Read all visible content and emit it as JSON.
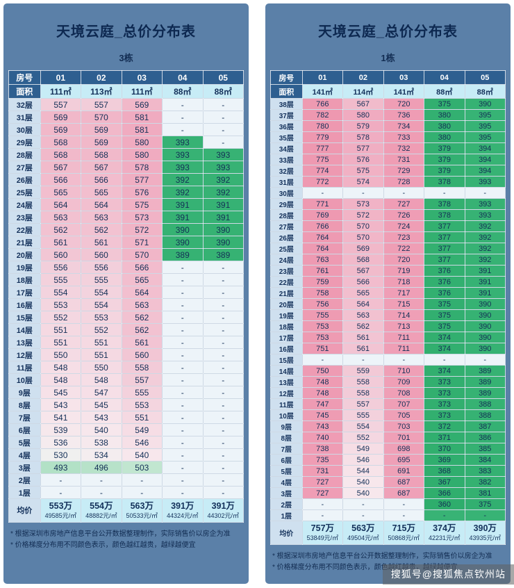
{
  "page": {
    "watermark": "搜狐号@搜狐焦点钦州站"
  },
  "colors": {
    "page_bg": "#ffffff",
    "panel_bg": "#5b80a8",
    "header_bg": "#2e5f90",
    "header_text": "#ffffff",
    "area_bg": "#c7ecf6",
    "floor_bg": "#cfe0ef",
    "avg_bg": "#c7ecf6",
    "text": "#132f56",
    "dash_bg": "#edf4f9",
    "green_dash_bg": "#38b375",
    "gradient_stops": [
      [
        360,
        "#2ead6c"
      ],
      [
        397,
        "#38b375"
      ],
      [
        468,
        "#90d4ab"
      ],
      [
        500,
        "#bce4cd"
      ],
      [
        520,
        "#ddeee4"
      ],
      [
        531,
        "#f2f0f0"
      ],
      [
        540,
        "#f7e7ec"
      ],
      [
        549,
        "#f6dde5"
      ],
      [
        556,
        "#f2cfdb"
      ],
      [
        562,
        "#f2c2d1"
      ],
      [
        570,
        "#f1b6c8"
      ],
      [
        580,
        "#f0abc0"
      ],
      [
        620,
        "#f0a5bb"
      ],
      [
        700,
        "#efa0b7"
      ],
      [
        782,
        "#ee98b0"
      ]
    ]
  },
  "chart_data": [
    {
      "type": "heatmap-table",
      "title": "天境云庭_总价分布表",
      "building": "3栋",
      "row_header": "房号",
      "area_header": "面积",
      "avg_header": "均价",
      "columns": [
        "01",
        "02",
        "03",
        "04",
        "05"
      ],
      "areas": [
        "111㎡",
        "113㎡",
        "111㎡",
        "88㎡",
        "88㎡"
      ],
      "rows": [
        {
          "floor": "32层",
          "values": [
            557,
            557,
            569,
            null,
            null
          ]
        },
        {
          "floor": "31层",
          "values": [
            569,
            570,
            581,
            null,
            null
          ]
        },
        {
          "floor": "30层",
          "values": [
            569,
            569,
            581,
            null,
            null
          ]
        },
        {
          "floor": "29层",
          "values": [
            568,
            569,
            580,
            393,
            null
          ]
        },
        {
          "floor": "28层",
          "values": [
            568,
            568,
            580,
            393,
            393
          ]
        },
        {
          "floor": "27层",
          "values": [
            567,
            567,
            578,
            393,
            393
          ]
        },
        {
          "floor": "26层",
          "values": [
            566,
            566,
            577,
            392,
            392
          ]
        },
        {
          "floor": "25层",
          "values": [
            565,
            565,
            576,
            392,
            392
          ]
        },
        {
          "floor": "24层",
          "values": [
            564,
            564,
            575,
            391,
            391
          ]
        },
        {
          "floor": "23层",
          "values": [
            563,
            563,
            573,
            391,
            391
          ]
        },
        {
          "floor": "22层",
          "values": [
            562,
            562,
            572,
            390,
            390
          ]
        },
        {
          "floor": "21层",
          "values": [
            561,
            561,
            571,
            390,
            390
          ]
        },
        {
          "floor": "20层",
          "values": [
            560,
            560,
            570,
            389,
            389
          ]
        },
        {
          "floor": "19层",
          "values": [
            556,
            556,
            566,
            null,
            null
          ]
        },
        {
          "floor": "18层",
          "values": [
            555,
            555,
            565,
            null,
            null
          ]
        },
        {
          "floor": "17层",
          "values": [
            554,
            554,
            564,
            null,
            null
          ]
        },
        {
          "floor": "16层",
          "values": [
            553,
            554,
            563,
            null,
            null
          ]
        },
        {
          "floor": "15层",
          "values": [
            552,
            553,
            562,
            null,
            null
          ]
        },
        {
          "floor": "14层",
          "values": [
            551,
            552,
            562,
            null,
            null
          ]
        },
        {
          "floor": "13层",
          "values": [
            551,
            551,
            561,
            null,
            null
          ]
        },
        {
          "floor": "12层",
          "values": [
            550,
            551,
            560,
            null,
            null
          ]
        },
        {
          "floor": "11层",
          "values": [
            548,
            550,
            558,
            null,
            null
          ]
        },
        {
          "floor": "10层",
          "values": [
            548,
            548,
            557,
            null,
            null
          ]
        },
        {
          "floor": "9层",
          "values": [
            545,
            547,
            555,
            null,
            null
          ]
        },
        {
          "floor": "8层",
          "values": [
            543,
            545,
            553,
            null,
            null
          ]
        },
        {
          "floor": "7层",
          "values": [
            541,
            543,
            551,
            null,
            null
          ]
        },
        {
          "floor": "6层",
          "values": [
            539,
            540,
            549,
            null,
            null
          ]
        },
        {
          "floor": "5层",
          "values": [
            536,
            538,
            546,
            null,
            null
          ]
        },
        {
          "floor": "4层",
          "values": [
            530,
            534,
            540,
            null,
            null
          ]
        },
        {
          "floor": "3层",
          "values": [
            493,
            496,
            503,
            null,
            null
          ]
        },
        {
          "floor": "2层",
          "values": [
            null,
            null,
            null,
            null,
            null
          ]
        },
        {
          "floor": "1层",
          "values": [
            null,
            null,
            null,
            null,
            null
          ]
        }
      ],
      "averages": [
        {
          "price": "553万",
          "unit": "49585元/㎡"
        },
        {
          "price": "554万",
          "unit": "48882元/㎡"
        },
        {
          "price": "563万",
          "unit": "50533元/㎡"
        },
        {
          "price": "391万",
          "unit": "44324元/㎡"
        },
        {
          "price": "391万",
          "unit": "44302元/㎡"
        }
      ],
      "notes": [
        "* 根据深圳市房地产信息平台公开数据整理制作，实际销售价以房企为准",
        "* 价格梯度分布用不同颜色表示，颜色越红越贵，越绿越便宜"
      ]
    },
    {
      "type": "heatmap-table",
      "title": "天境云庭_总价分布表",
      "building": "1栋",
      "row_header": "房号",
      "area_header": "面积",
      "avg_header": "均价",
      "columns": [
        "01",
        "02",
        "03",
        "04",
        "05"
      ],
      "areas": [
        "141㎡",
        "114㎡",
        "141㎡",
        "88㎡",
        "88㎡"
      ],
      "rows": [
        {
          "floor": "38层",
          "values": [
            766,
            567,
            720,
            375,
            390
          ]
        },
        {
          "floor": "37层",
          "values": [
            782,
            580,
            736,
            380,
            395
          ]
        },
        {
          "floor": "36层",
          "values": [
            780,
            579,
            734,
            380,
            395
          ]
        },
        {
          "floor": "35层",
          "values": [
            779,
            578,
            733,
            380,
            395
          ]
        },
        {
          "floor": "34层",
          "values": [
            777,
            577,
            732,
            379,
            394
          ]
        },
        {
          "floor": "33层",
          "values": [
            775,
            576,
            731,
            379,
            394
          ]
        },
        {
          "floor": "32层",
          "values": [
            774,
            575,
            729,
            379,
            394
          ]
        },
        {
          "floor": "31层",
          "values": [
            772,
            574,
            728,
            378,
            393
          ]
        },
        {
          "floor": "30层",
          "values": [
            null,
            null,
            null,
            null,
            null
          ]
        },
        {
          "floor": "29层",
          "values": [
            771,
            573,
            727,
            378,
            393
          ]
        },
        {
          "floor": "28层",
          "values": [
            769,
            572,
            726,
            378,
            393
          ]
        },
        {
          "floor": "27层",
          "values": [
            766,
            570,
            724,
            377,
            392
          ]
        },
        {
          "floor": "26层",
          "values": [
            764,
            570,
            723,
            377,
            392
          ]
        },
        {
          "floor": "25层",
          "values": [
            764,
            569,
            722,
            377,
            392
          ]
        },
        {
          "floor": "24层",
          "values": [
            763,
            568,
            720,
            377,
            392
          ]
        },
        {
          "floor": "23层",
          "values": [
            761,
            567,
            719,
            376,
            391
          ]
        },
        {
          "floor": "22层",
          "values": [
            759,
            566,
            718,
            376,
            391
          ]
        },
        {
          "floor": "21层",
          "values": [
            758,
            565,
            717,
            376,
            391
          ]
        },
        {
          "floor": "20层",
          "values": [
            756,
            564,
            715,
            375,
            390
          ]
        },
        {
          "floor": "19层",
          "values": [
            755,
            563,
            714,
            375,
            390
          ]
        },
        {
          "floor": "18层",
          "values": [
            753,
            562,
            713,
            375,
            390
          ]
        },
        {
          "floor": "17层",
          "values": [
            753,
            561,
            711,
            374,
            390
          ]
        },
        {
          "floor": "16层",
          "values": [
            751,
            561,
            711,
            374,
            390
          ]
        },
        {
          "floor": "15层",
          "values": [
            null,
            null,
            null,
            null,
            null
          ]
        },
        {
          "floor": "14层",
          "values": [
            750,
            559,
            710,
            374,
            389
          ]
        },
        {
          "floor": "13层",
          "values": [
            748,
            558,
            709,
            373,
            389
          ]
        },
        {
          "floor": "12层",
          "values": [
            748,
            558,
            708,
            373,
            389
          ]
        },
        {
          "floor": "11层",
          "values": [
            747,
            557,
            707,
            373,
            388
          ]
        },
        {
          "floor": "10层",
          "values": [
            745,
            555,
            705,
            373,
            388
          ]
        },
        {
          "floor": "9层",
          "values": [
            743,
            554,
            703,
            372,
            387
          ]
        },
        {
          "floor": "8层",
          "values": [
            740,
            552,
            701,
            371,
            386
          ]
        },
        {
          "floor": "7层",
          "values": [
            738,
            549,
            698,
            370,
            385
          ]
        },
        {
          "floor": "6层",
          "values": [
            735,
            546,
            695,
            369,
            384
          ]
        },
        {
          "floor": "5层",
          "values": [
            731,
            544,
            691,
            368,
            383
          ]
        },
        {
          "floor": "4层",
          "values": [
            727,
            540,
            687,
            367,
            382
          ]
        },
        {
          "floor": "3层",
          "values": [
            727,
            540,
            687,
            366,
            381
          ]
        },
        {
          "floor": "2层",
          "values": [
            null,
            null,
            null,
            360,
            375
          ]
        },
        {
          "floor": "1层",
          "values": [
            null,
            null,
            null,
            null,
            null
          ],
          "green_dash_cols": [
            3,
            4
          ]
        }
      ],
      "averages": [
        {
          "price": "757万",
          "unit": "53849元/㎡"
        },
        {
          "price": "563万",
          "unit": "49504元/㎡"
        },
        {
          "price": "715万",
          "unit": "50868元/㎡"
        },
        {
          "price": "374万",
          "unit": "42231元/㎡"
        },
        {
          "price": "390万",
          "unit": "43935元/㎡"
        }
      ],
      "notes": [
        "* 根据深圳市房地产信息平台公开数据整理制作，实际销售价以房企为准",
        "* 价格梯度分布用不同颜色表示，颜色越红越贵，越绿越便宜"
      ]
    }
  ]
}
